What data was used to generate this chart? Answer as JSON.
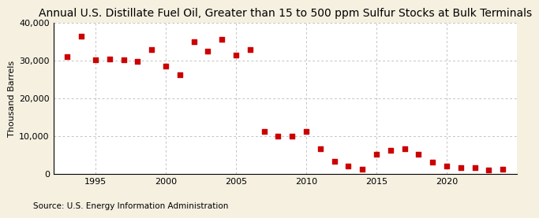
{
  "title": "Annual U.S. Distillate Fuel Oil, Greater than 15 to 500 ppm Sulfur Stocks at Bulk Terminals",
  "ylabel": "Thousand Barrels",
  "source": "Source: U.S. Energy Information Administration",
  "background_color": "#f5f0e0",
  "plot_background_color": "#ffffff",
  "marker_color": "#cc0000",
  "marker_size": 25,
  "years": [
    1993,
    1994,
    1995,
    1996,
    1997,
    1998,
    1999,
    2000,
    2001,
    2002,
    2003,
    2004,
    2005,
    2006,
    2007,
    2008,
    2009,
    2010,
    2011,
    2012,
    2013,
    2014,
    2015,
    2016,
    2017,
    2018,
    2019,
    2020,
    2021,
    2022,
    2023,
    2024
  ],
  "values": [
    31000,
    36500,
    30200,
    30500,
    30200,
    29800,
    33000,
    28500,
    26300,
    35000,
    32500,
    35700,
    31400,
    32900,
    11300,
    9900,
    9900,
    11300,
    6700,
    3300,
    2100,
    1100,
    5100,
    6200,
    6700,
    5100,
    3100,
    2100,
    1600,
    1600,
    900,
    1100
  ],
  "xlim": [
    1992,
    2025
  ],
  "ylim": [
    0,
    40000
  ],
  "yticks": [
    0,
    10000,
    20000,
    30000,
    40000
  ],
  "ytick_labels": [
    "0",
    "10,000",
    "20,000",
    "30,000",
    "40,000"
  ],
  "xticks": [
    1995,
    2000,
    2005,
    2010,
    2015,
    2020
  ],
  "grid_color": "#aaaaaa",
  "title_fontsize": 10,
  "axis_fontsize": 8,
  "source_fontsize": 7.5
}
